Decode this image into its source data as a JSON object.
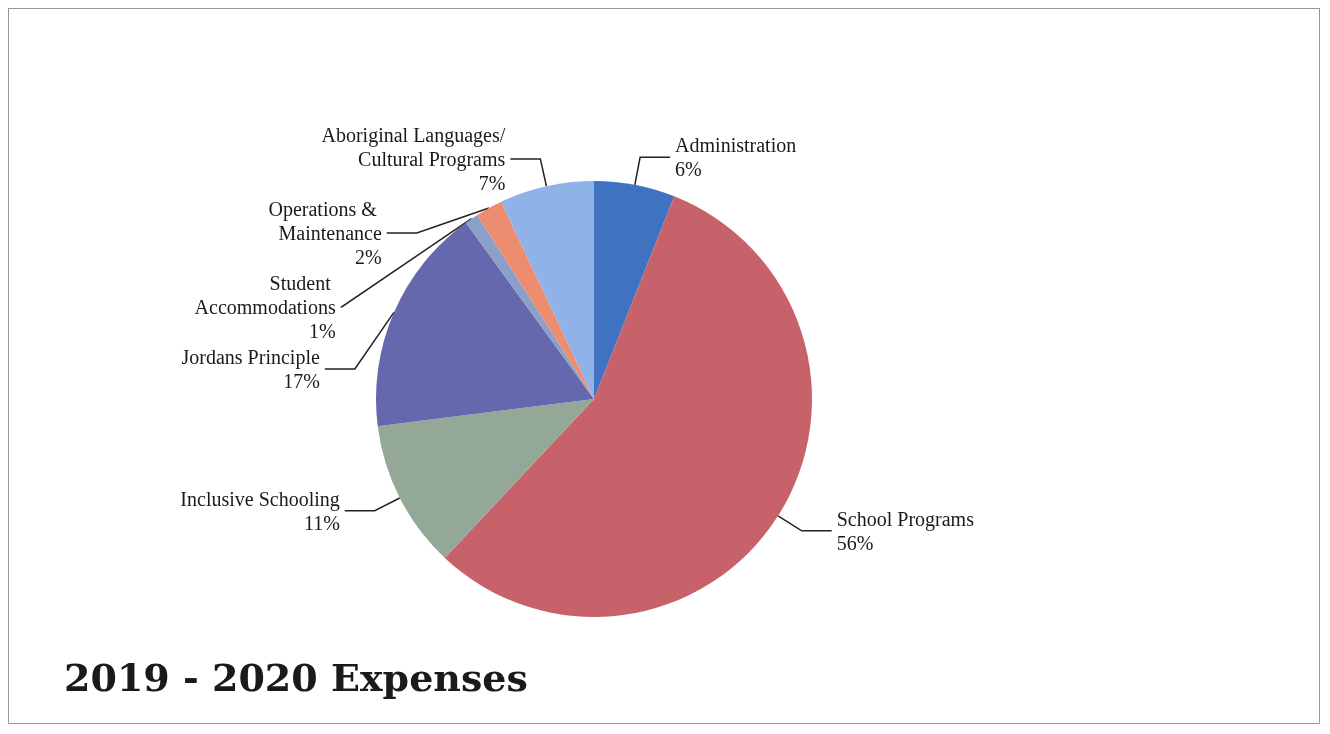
{
  "chart_data": {
    "type": "pie",
    "title": "2019 - 2020 Expenses",
    "categories": [
      "Administration",
      "School Programs",
      "Inclusive Schooling",
      "Jordans Principle",
      "Student Accommodations",
      "Operations & Maintenance",
      "Aboriginal Languages/Cultural Programs"
    ],
    "values": [
      6,
      56,
      11,
      17,
      1,
      2,
      7
    ],
    "value_labels": [
      "6%",
      "56%",
      "11%",
      "17%",
      "1%",
      "2%",
      "7%"
    ],
    "colors": [
      "#3f72c0",
      "#c8626a",
      "#94a898",
      "#6668ad",
      "#8aa0c8",
      "#ee8c70",
      "#8fb3e8"
    ]
  }
}
